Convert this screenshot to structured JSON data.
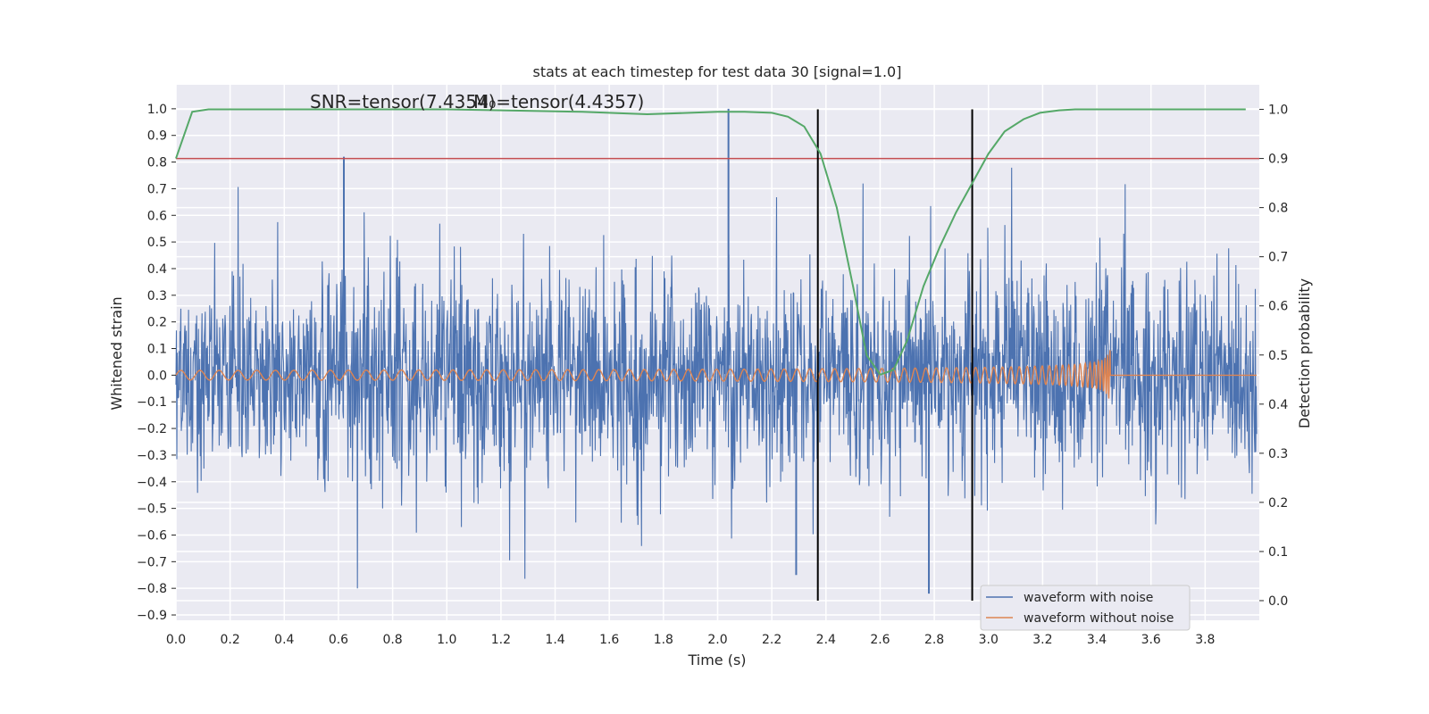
{
  "chart_data": {
    "type": "line",
    "title": "stats at each timestep for test data 30 [signal=1.0]",
    "xlabel": "Time (s)",
    "ylabel_left": "Whitened strain",
    "ylabel_right": "Detection probability",
    "xlim": [
      0.0,
      4.0
    ],
    "ylim_left": [
      -0.92,
      1.09
    ],
    "ylim_right": [
      -0.04,
      1.05
    ],
    "x_ticks": [
      "0.0",
      "0.2",
      "0.4",
      "0.6",
      "0.8",
      "1.0",
      "1.2",
      "1.4",
      "1.6",
      "1.8",
      "2.0",
      "2.2",
      "2.4",
      "2.6",
      "2.8",
      "3.0",
      "3.2",
      "3.4",
      "3.6",
      "3.8"
    ],
    "y_ticks_left": [
      "1.0",
      "0.9",
      "0.8",
      "0.7",
      "0.6",
      "0.5",
      "0.4",
      "0.3",
      "0.2",
      "0.1",
      "0.0",
      "−0.1",
      "−0.2",
      "−0.3",
      "−0.4",
      "−0.5",
      "−0.6",
      "−0.7",
      "−0.8",
      "−0.9"
    ],
    "y_ticks_right": [
      "1.0",
      "0.9",
      "0.8",
      "0.7",
      "0.6",
      "0.5",
      "0.4",
      "0.3",
      "0.2",
      "0.1",
      "0.0"
    ],
    "annotations": {
      "snr": "SNR=tensor(7.4354)",
      "m0": "M₀=tensor(4.4357)"
    },
    "grid": true,
    "legend_position": "lower-right",
    "series": [
      {
        "name": "waveform with noise",
        "color": "#4c72b0",
        "axis": "left",
        "description": "noisy whitened strain, roughly within ±0.5 with spikes to ±0.8",
        "peaks": [
          {
            "x": 0.62,
            "y": 0.82
          },
          {
            "x": 2.04,
            "y": 1.0
          },
          {
            "x": 2.78,
            "y": -0.82
          },
          {
            "x": 2.29,
            "y": -0.75
          }
        ]
      },
      {
        "name": "waveform without noise",
        "color": "#dd8452",
        "axis": "left",
        "description": "chirp signal, amplitude ~0.02 growing to ~0.18 until merger at 3.45 s, zero afterwards",
        "merger_time": 3.45
      },
      {
        "name": "",
        "color": "#55a868",
        "axis": "right",
        "x": [
          0.0,
          0.06,
          0.12,
          0.2,
          0.5,
          1.0,
          1.5,
          1.74,
          2.0,
          2.1,
          2.2,
          2.26,
          2.32,
          2.38,
          2.44,
          2.5,
          2.55,
          2.6,
          2.65,
          2.7,
          2.76,
          2.82,
          2.88,
          2.94,
          3.0,
          3.06,
          3.13,
          3.19,
          3.26,
          3.32,
          3.5,
          3.8,
          3.95
        ],
        "y": [
          0.9,
          0.995,
          1.0,
          1.0,
          1.0,
          1.0,
          0.995,
          0.99,
          0.995,
          0.995,
          0.993,
          0.985,
          0.965,
          0.91,
          0.8,
          0.64,
          0.5,
          0.46,
          0.47,
          0.53,
          0.64,
          0.72,
          0.79,
          0.85,
          0.91,
          0.955,
          0.98,
          0.993,
          0.998,
          1.0,
          1.0,
          1.0,
          1.0
        ]
      }
    ],
    "threshold_line": {
      "axis": "right",
      "y": 0.9,
      "color": "#c44e52"
    },
    "vertical_lines": {
      "x": [
        2.37,
        2.94
      ],
      "color": "#000000"
    }
  }
}
